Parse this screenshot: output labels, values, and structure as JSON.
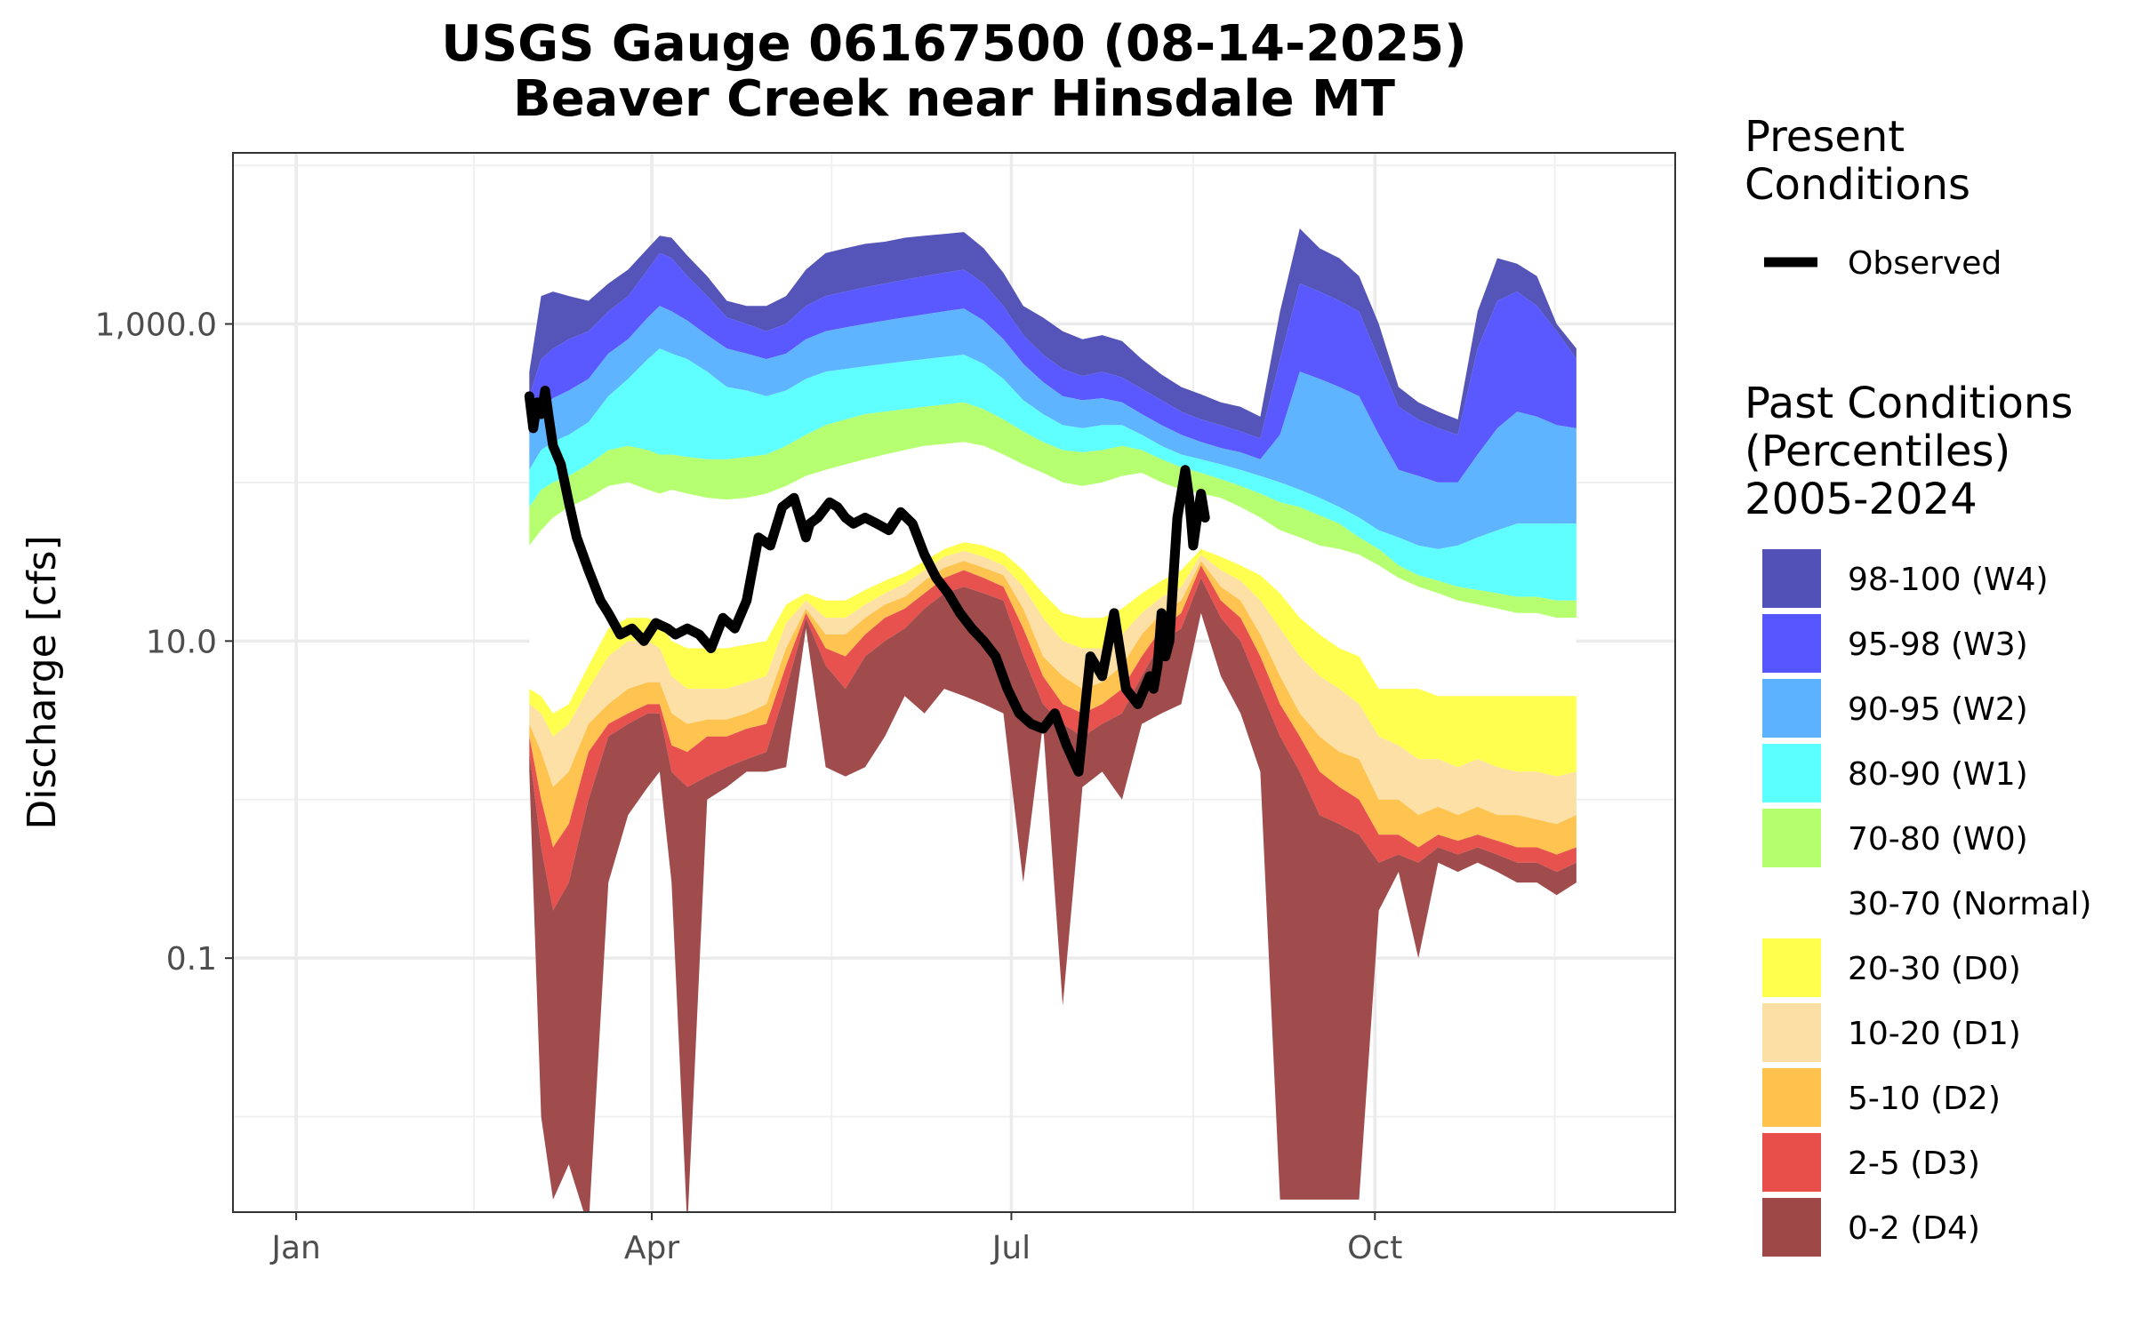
{
  "chart_data": {
    "type": "area",
    "title": "USGS Gauge 06167500 (08-14-2025)",
    "subtitle": "Beaver Creek near Hinsdale MT",
    "xlabel": "",
    "ylabel": "Discharge [cfs]",
    "y_scale": "log10",
    "ylim": [
      0.0025,
      12000
    ],
    "xlim_day_of_year": [
      -15,
      350
    ],
    "x_ticks": [
      {
        "label": "Jan",
        "day": 1
      },
      {
        "label": "Apr",
        "day": 91
      },
      {
        "label": "Jul",
        "day": 182
      },
      {
        "label": "Oct",
        "day": 274
      }
    ],
    "y_ticks": [
      {
        "label": "0.1",
        "value": 0.1
      },
      {
        "label": "10.0",
        "value": 10
      },
      {
        "label": "1,000.0",
        "value": 1000
      }
    ],
    "grid": true,
    "legend_position": "right",
    "present_legend_title": "Present Conditions",
    "past_legend_title": "Past Conditions (Percentiles) 2005-2024",
    "present_series": [
      {
        "name": "Observed",
        "color": "#000000"
      }
    ],
    "bands": [
      {
        "name": "98-100 (W4)",
        "color": "#5151b8"
      },
      {
        "name": "95-98 (W3)",
        "color": "#5656ff"
      },
      {
        "name": "90-95 (W2)",
        "color": "#5cb2ff"
      },
      {
        "name": "80-90 (W1)",
        "color": "#5cffff"
      },
      {
        "name": "70-80 (W0)",
        "color": "#b5ff6e"
      },
      {
        "name": "30-70 (Normal)",
        "color": "#ffffff"
      },
      {
        "name": "20-30 (D0)",
        "color": "#ffff4d"
      },
      {
        "name": "10-20 (D1)",
        "color": "#fcdfa4"
      },
      {
        "name": "5-10 (D2)",
        "color": "#ffc24d"
      },
      {
        "name": "2-5 (D3)",
        "color": "#e84f4a"
      },
      {
        "name": "0-2 (D4)",
        "color": "#9e4848"
      }
    ],
    "percentile_keys": [
      "min",
      "p2",
      "p5",
      "p10",
      "p20",
      "p30",
      "p70",
      "p80",
      "p90",
      "p95",
      "p98",
      "max"
    ],
    "days": [
      60,
      63,
      66,
      70,
      75,
      80,
      85,
      90,
      93,
      96,
      100,
      105,
      110,
      115,
      120,
      125,
      130,
      135,
      140,
      145,
      150,
      155,
      160,
      165,
      170,
      175,
      180,
      185,
      190,
      195,
      200,
      205,
      210,
      215,
      220,
      225,
      230,
      235,
      240,
      245,
      250,
      255,
      260,
      265,
      270,
      275,
      280,
      285,
      290,
      295,
      300,
      305,
      310,
      315,
      320,
      325
    ],
    "percentiles": {
      "min": [
        1.5,
        0.01,
        0.003,
        0.005,
        0.002,
        0.3,
        0.8,
        1.2,
        1.5,
        0.3,
        0.002,
        1.0,
        1.2,
        1.5,
        1.5,
        1.6,
        12,
        1.6,
        1.4,
        1.6,
        2.5,
        4.5,
        3.5,
        5,
        4.5,
        4,
        3.5,
        0.3,
        3,
        0.05,
        1.2,
        1.5,
        1.0,
        3,
        3.5,
        4,
        15,
        6,
        3.5,
        1.5,
        0.003,
        0.003,
        0.003,
        0.003,
        0.003,
        0.2,
        0.35,
        0.1,
        0.4,
        0.35,
        0.4,
        0.35,
        0.3,
        0.3,
        0.25,
        0.3
      ],
      "p2": [
        2.0,
        0.5,
        0.2,
        0.3,
        1.0,
        2.5,
        3,
        3.5,
        3.5,
        1.5,
        1.2,
        1.4,
        1.6,
        1.8,
        2.0,
        5.0,
        14,
        7,
        5,
        8,
        10,
        12,
        16,
        20,
        22,
        20,
        18,
        8,
        4,
        3,
        2.5,
        3,
        3.5,
        6,
        10,
        12,
        25,
        14,
        10,
        5,
        2.5,
        1.5,
        0.8,
        0.7,
        0.6,
        0.4,
        0.45,
        0.4,
        0.5,
        0.45,
        0.5,
        0.45,
        0.4,
        0.4,
        0.35,
        0.4
      ],
      "p5": [
        2.5,
        1.0,
        0.5,
        0.7,
        2.0,
        3.0,
        3.5,
        4,
        4,
        2.2,
        2.0,
        2.5,
        2.5,
        2.8,
        3.0,
        7,
        15,
        9,
        8,
        11,
        14,
        16,
        20,
        25,
        28,
        25,
        22,
        12,
        6,
        4,
        3.5,
        4,
        5,
        8,
        12,
        15,
        30,
        18,
        14,
        8,
        4,
        2.5,
        1.5,
        1.2,
        1.0,
        0.6,
        0.6,
        0.5,
        0.6,
        0.55,
        0.6,
        0.55,
        0.5,
        0.5,
        0.45,
        0.5
      ],
      "p10": [
        3.0,
        2.0,
        1.2,
        1.5,
        3.0,
        4,
        5,
        5.5,
        5.5,
        3.5,
        3.0,
        3.2,
        3.2,
        3.5,
        4,
        9,
        16,
        11,
        11,
        14,
        17,
        19,
        24,
        29,
        32,
        29,
        26,
        16,
        8,
        6,
        5,
        5.5,
        7,
        11,
        15,
        18,
        32,
        22,
        18,
        11,
        6,
        3.5,
        2.5,
        2.0,
        1.8,
        1.0,
        1.0,
        0.8,
        0.9,
        0.8,
        0.9,
        0.8,
        0.8,
        0.75,
        0.7,
        0.8
      ],
      "p20": [
        4.0,
        3.5,
        2.5,
        3.0,
        5.0,
        8,
        10,
        10,
        9,
        6,
        5,
        5,
        5,
        5.5,
        6,
        13,
        18,
        14,
        14,
        17,
        20,
        23,
        28,
        34,
        37,
        34,
        30,
        22,
        14,
        10,
        9,
        9,
        11,
        15,
        19,
        22,
        35,
        28,
        24,
        18,
        12,
        8,
        6,
        5,
        4,
        2.5,
        2.2,
        1.8,
        1.8,
        1.6,
        1.8,
        1.6,
        1.5,
        1.5,
        1.4,
        1.5
      ],
      "p30": [
        5.0,
        4.5,
        3.5,
        4.0,
        7.0,
        12,
        14,
        14,
        13,
        10,
        9,
        9,
        9,
        9.5,
        10,
        17,
        20,
        18,
        18,
        21,
        24,
        27,
        32,
        38,
        42,
        40,
        36,
        28,
        20,
        15,
        14,
        14,
        16,
        20,
        24,
        28,
        38,
        34,
        30,
        26,
        20,
        14,
        11,
        9,
        8,
        5,
        5,
        5,
        4.5,
        4.5,
        4.5,
        4.5,
        4.5,
        4.5,
        4.5,
        4.5
      ],
      "p70": [
        40,
        50,
        60,
        70,
        80,
        95,
        100,
        90,
        85,
        90,
        85,
        80,
        78,
        80,
        85,
        95,
        110,
        120,
        130,
        140,
        150,
        160,
        170,
        175,
        180,
        170,
        150,
        130,
        115,
        100,
        95,
        100,
        110,
        115,
        100,
        90,
        85,
        80,
        70,
        60,
        50,
        45,
        40,
        38,
        35,
        30,
        25,
        22,
        20,
        18,
        17,
        16,
        15,
        15,
        14,
        14
      ],
      "p80": [
        70,
        90,
        100,
        110,
        130,
        160,
        170,
        160,
        150,
        150,
        145,
        140,
        140,
        145,
        150,
        170,
        200,
        230,
        250,
        270,
        280,
        290,
        300,
        310,
        320,
        290,
        250,
        210,
        180,
        160,
        155,
        160,
        170,
        160,
        140,
        125,
        115,
        105,
        95,
        85,
        75,
        70,
        62,
        55,
        45,
        38,
        30,
        26,
        24,
        22,
        21,
        20,
        19,
        19,
        18,
        18
      ],
      "p90": [
        120,
        160,
        180,
        200,
        240,
        350,
        450,
        600,
        700,
        650,
        600,
        500,
        400,
        380,
        350,
        380,
        450,
        500,
        520,
        540,
        560,
        580,
        600,
        620,
        640,
        560,
        450,
        330,
        270,
        230,
        220,
        230,
        230,
        200,
        170,
        150,
        140,
        130,
        120,
        110,
        100,
        90,
        80,
        70,
        60,
        50,
        45,
        40,
        38,
        40,
        45,
        50,
        55,
        55,
        55,
        55
      ],
      "p95": [
        200,
        300,
        340,
        380,
        450,
        650,
        800,
        1100,
        1300,
        1200,
        1050,
        850,
        700,
        650,
        600,
        650,
        800,
        900,
        950,
        1000,
        1050,
        1100,
        1150,
        1200,
        1250,
        1050,
        800,
        560,
        430,
        350,
        330,
        340,
        320,
        270,
        230,
        200,
        180,
        165,
        155,
        140,
        200,
        500,
        450,
        400,
        350,
        200,
        120,
        110,
        100,
        100,
        150,
        220,
        280,
        260,
        230,
        220
      ],
      "p98": [
        350,
        600,
        700,
        800,
        900,
        1200,
        1500,
        2200,
        2800,
        2600,
        2000,
        1500,
        1100,
        1000,
        900,
        1000,
        1300,
        1500,
        1600,
        1700,
        1800,
        1900,
        2000,
        2100,
        2200,
        1800,
        1300,
        850,
        640,
        520,
        470,
        500,
        460,
        390,
        330,
        280,
        250,
        230,
        210,
        190,
        600,
        1800,
        1600,
        1400,
        1200,
        600,
        300,
        250,
        220,
        200,
        700,
        1400,
        1600,
        1300,
        900,
        600
      ],
      "max": [
        500,
        1500,
        1600,
        1500,
        1400,
        1800,
        2200,
        3000,
        3600,
        3500,
        2700,
        2000,
        1400,
        1300,
        1300,
        1500,
        2200,
        2800,
        3000,
        3200,
        3300,
        3500,
        3600,
        3700,
        3800,
        3000,
        2100,
        1300,
        1100,
        900,
        800,
        850,
        780,
        600,
        480,
        400,
        360,
        320,
        300,
        260,
        1200,
        4000,
        3000,
        2600,
        2000,
        1000,
        400,
        320,
        280,
        250,
        1200,
        2600,
        2400,
        2000,
        1000,
        700
      ]
    },
    "observed": {
      "days": [
        60,
        61,
        62,
        63,
        64,
        65,
        66,
        68,
        70,
        72,
        75,
        78,
        80,
        83,
        86,
        89,
        92,
        95,
        97,
        100,
        103,
        106,
        109,
        112,
        115,
        118,
        121,
        124,
        127,
        130,
        131,
        133,
        136,
        138,
        140,
        142,
        145,
        148,
        151,
        154,
        157,
        160,
        163,
        166,
        169,
        172,
        175,
        178,
        181,
        184,
        187,
        190,
        193,
        196,
        199,
        202,
        205,
        208,
        211,
        214,
        217,
        218,
        219,
        220,
        221,
        222,
        223,
        224,
        226,
        227,
        228,
        229,
        230,
        231
      ],
      "values": [
        350,
        220,
        320,
        270,
        380,
        250,
        170,
        130,
        75,
        45,
        28,
        18,
        15,
        11,
        12,
        10,
        13,
        12,
        11,
        12,
        11,
        9,
        14,
        12,
        18,
        45,
        40,
        70,
        80,
        45,
        55,
        60,
        75,
        70,
        60,
        55,
        60,
        55,
        50,
        65,
        55,
        35,
        25,
        20,
        15,
        12,
        10,
        8,
        5,
        3.5,
        3.0,
        2.8,
        3.5,
        2.2,
        1.5,
        8,
        6,
        15,
        5,
        4,
        6,
        5,
        7,
        15,
        8,
        10,
        25,
        60,
        120,
        80,
        40,
        60,
        85,
        60
      ]
    }
  }
}
